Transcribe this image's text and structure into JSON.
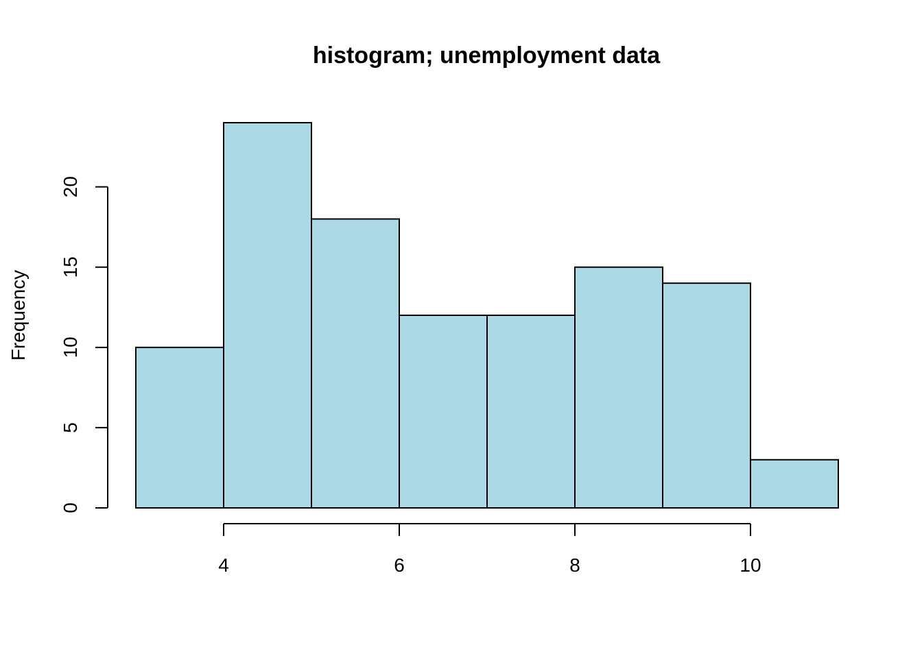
{
  "chart_data": {
    "type": "bar",
    "title": "histogram; unemployment data",
    "xlabel": "",
    "ylabel": "Frequency",
    "bins": [
      {
        "start": 3,
        "end": 4,
        "count": 10
      },
      {
        "start": 4,
        "end": 5,
        "count": 24
      },
      {
        "start": 5,
        "end": 6,
        "count": 18
      },
      {
        "start": 6,
        "end": 7,
        "count": 12
      },
      {
        "start": 7,
        "end": 8,
        "count": 12
      },
      {
        "start": 8,
        "end": 9,
        "count": 15
      },
      {
        "start": 9,
        "end": 10,
        "count": 14
      },
      {
        "start": 10,
        "end": 11,
        "count": 3
      }
    ],
    "xlim": [
      3,
      11
    ],
    "ylim": [
      0,
      24
    ],
    "x_ticks": [
      4,
      6,
      8,
      10
    ],
    "y_ticks": [
      0,
      5,
      10,
      15,
      20
    ],
    "grid": false,
    "bar_color": "#add8e6",
    "edge_color": "#000000"
  }
}
